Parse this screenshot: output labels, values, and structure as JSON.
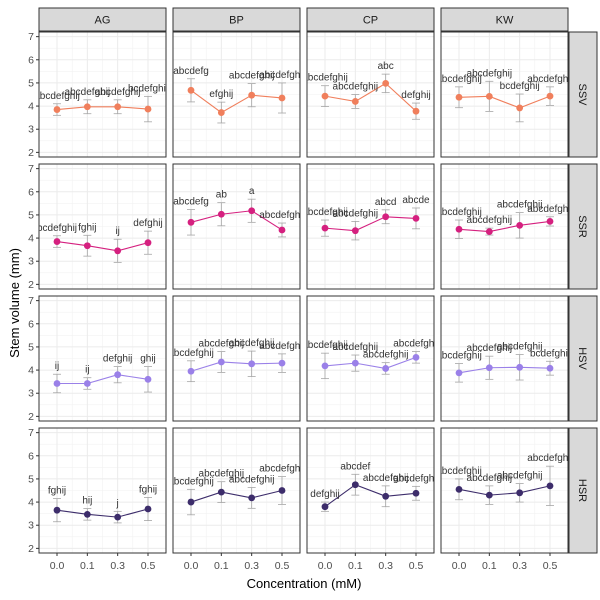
{
  "chart_data": {
    "type": "line",
    "xlabel": "Concentration (mM)",
    "ylabel": "Stem volume (mm)",
    "x": [
      "0.0",
      "0.1",
      "0.3",
      "0.5"
    ],
    "ylim": [
      1.8,
      7.2
    ],
    "yticks": [
      2,
      3,
      4,
      5,
      6,
      7
    ],
    "grid": true,
    "columns": [
      "AG",
      "BP",
      "CP",
      "KW"
    ],
    "rows": [
      "SSV",
      "SSR",
      "HSV",
      "HSR"
    ],
    "row_colors": {
      "SSV": "#f07f5c",
      "SSR": "#d5207f",
      "HSV": "#9a80e8",
      "HSR": "#3d2d6b"
    },
    "panels": [
      {
        "row": "SSV",
        "col": "AG",
        "values": [
          3.85,
          3.97,
          3.97,
          3.87
        ],
        "errors": [
          0.25,
          0.3,
          0.3,
          0.55
        ],
        "labels": [
          "abcdefghij",
          "abcdefghij",
          "abcdefghij",
          "bcdefghij"
        ]
      },
      {
        "row": "SSV",
        "col": "BP",
        "values": [
          4.68,
          3.72,
          4.47,
          4.35
        ],
        "errors": [
          0.5,
          0.45,
          0.5,
          0.65
        ],
        "labels": [
          "abcdefg",
          "efghij",
          "abcdefghij",
          "abcdefghij"
        ]
      },
      {
        "row": "SSV",
        "col": "CP",
        "values": [
          4.43,
          4.2,
          4.98,
          3.78
        ],
        "errors": [
          0.45,
          0.3,
          0.4,
          0.35
        ],
        "labels": [
          "abcdefghij",
          "abcdefghij",
          "abc",
          "defghij"
        ]
      },
      {
        "row": "SSV",
        "col": "KW",
        "values": [
          4.38,
          4.42,
          3.92,
          4.43
        ],
        "errors": [
          0.45,
          0.65,
          0.6,
          0.4
        ],
        "labels": [
          "abcdefghij",
          "abcdefghij",
          "bcdefghij",
          "abcdefghij"
        ]
      },
      {
        "row": "SSR",
        "col": "AG",
        "values": [
          3.85,
          3.67,
          3.45,
          3.8
        ],
        "errors": [
          0.25,
          0.45,
          0.5,
          0.5
        ],
        "labels": [
          "bcdefghij",
          "fghij",
          "ij",
          "defghij"
        ]
      },
      {
        "row": "SSR",
        "col": "BP",
        "values": [
          4.68,
          5.03,
          5.18,
          4.35
        ],
        "errors": [
          0.55,
          0.5,
          0.5,
          0.3
        ],
        "labels": [
          "abcdefg",
          "ab",
          "a",
          "abcdefghij"
        ]
      },
      {
        "row": "SSR",
        "col": "CP",
        "values": [
          4.43,
          4.32,
          4.92,
          4.85
        ],
        "errors": [
          0.35,
          0.4,
          0.3,
          0.45
        ],
        "labels": [
          "abcdefghij",
          "abcdefghij",
          "abcd",
          "abcde"
        ]
      },
      {
        "row": "SSR",
        "col": "KW",
        "values": [
          4.38,
          4.28,
          4.55,
          4.72
        ],
        "errors": [
          0.4,
          0.15,
          0.55,
          0.2
        ],
        "labels": [
          "abcdefghij",
          "abcdefghij",
          "abcdefghij",
          "abcdefghij"
        ]
      },
      {
        "row": "HSV",
        "col": "AG",
        "values": [
          3.42,
          3.42,
          3.8,
          3.6
        ],
        "errors": [
          0.4,
          0.25,
          0.35,
          0.55
        ],
        "labels": [
          "ij",
          "ij",
          "defghij",
          "ghij"
        ]
      },
      {
        "row": "HSV",
        "col": "BP",
        "values": [
          3.95,
          4.35,
          4.27,
          4.3
        ],
        "errors": [
          0.45,
          0.45,
          0.55,
          0.4
        ],
        "labels": [
          "abcdefghij",
          "abcdefghij",
          "abcdefghij",
          "abcdefghij"
        ]
      },
      {
        "row": "HSV",
        "col": "CP",
        "values": [
          4.18,
          4.3,
          4.07,
          4.55
        ],
        "errors": [
          0.55,
          0.35,
          0.25,
          0.25
        ],
        "labels": [
          "abcdefghij",
          "abcdefghij",
          "abcdefghij",
          "abcdefghij"
        ]
      },
      {
        "row": "HSV",
        "col": "KW",
        "values": [
          3.88,
          4.1,
          4.12,
          4.08
        ],
        "errors": [
          0.4,
          0.5,
          0.55,
          0.3
        ],
        "labels": [
          "abcdefghij",
          "abcdefghij",
          "abcdefghij",
          "bcdefghij"
        ]
      },
      {
        "row": "HSR",
        "col": "AG",
        "values": [
          3.65,
          3.47,
          3.35,
          3.7
        ],
        "errors": [
          0.5,
          0.25,
          0.25,
          0.5
        ],
        "labels": [
          "fghij",
          "hij",
          "j",
          "fghij"
        ]
      },
      {
        "row": "HSR",
        "col": "BP",
        "values": [
          4.0,
          4.43,
          4.18,
          4.5
        ],
        "errors": [
          0.55,
          0.45,
          0.45,
          0.6
        ],
        "labels": [
          "abcdefghij",
          "abcdefghij",
          "abcdefghij",
          "abcdefghij"
        ]
      },
      {
        "row": "HSR",
        "col": "CP",
        "values": [
          3.8,
          4.75,
          4.25,
          4.38
        ],
        "errors": [
          0.2,
          0.45,
          0.45,
          0.3
        ],
        "labels": [
          "defghij",
          "abcdef",
          "abcdefghij",
          "abcdefghij"
        ]
      },
      {
        "row": "HSR",
        "col": "KW",
        "values": [
          4.55,
          4.3,
          4.4,
          4.7
        ],
        "errors": [
          0.45,
          0.4,
          0.4,
          0.85
        ],
        "labels": [
          "abcdefghij",
          "abcdefghij",
          "abcdefghij",
          "abcdefghij"
        ]
      }
    ]
  }
}
